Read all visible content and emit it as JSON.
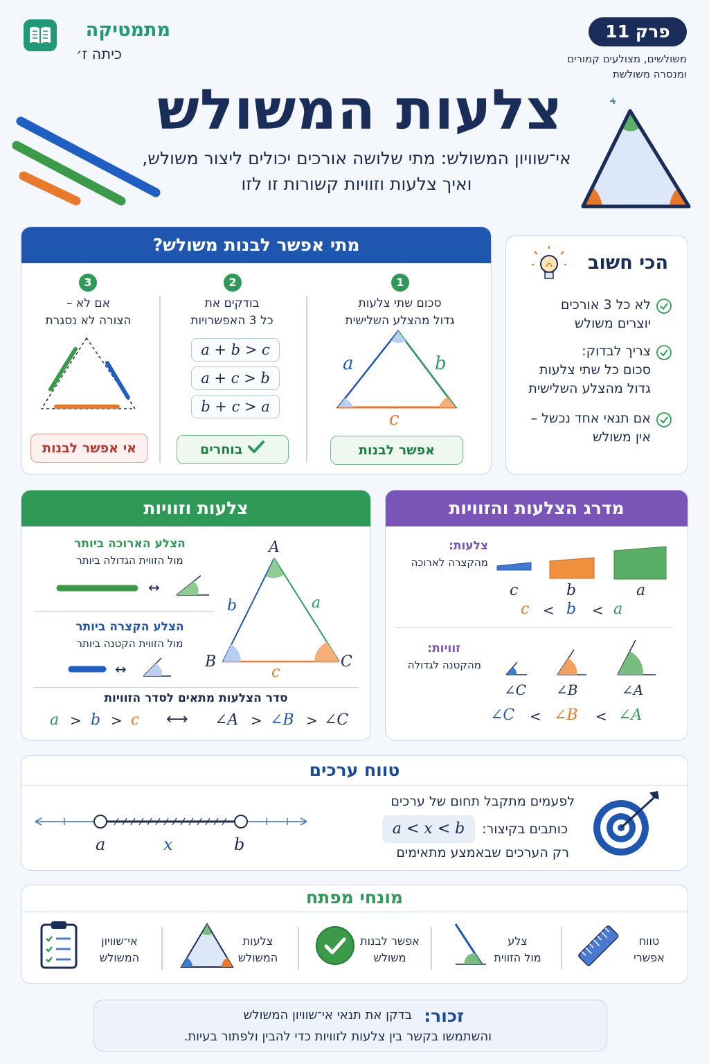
{
  "header": {
    "brand_title": "מתמטיקה",
    "brand_grade": "כיתה ז׳",
    "chapter_badge": "פרק 11",
    "chapter_topics_line1": "משולשים, מצולעים קמורים",
    "chapter_topics_line2": "ומנסרה משולשת",
    "main_title": "צלעות המשולש",
    "subtitle_line1": "אי־שוויון המשולש: מתי שלושה אורכים יכולים ליצור משולש,",
    "subtitle_line2": "ואיך צלעות וזוויות קשורות זו לזו"
  },
  "build_section": {
    "title": "מתי אפשר לבנות משולש?",
    "steps": [
      {
        "num": "1",
        "line1": "סכום שתי צלעות",
        "line2": "גדול מהצלע השלישית",
        "button": "אפשר לבנות"
      },
      {
        "num": "2",
        "line1": "בודקים את",
        "line2": "כל 3 האפשרויות",
        "button": "בוחרים"
      },
      {
        "num": "3",
        "line1": "אם לא –",
        "line2": "הצורה לא נסגרת",
        "button": "אי אפשר לבנות"
      }
    ],
    "inequalities": [
      "a + b > c",
      "a + c > b",
      "b + c > a"
    ],
    "side_labels": {
      "a": "a",
      "b": "b",
      "c": "c"
    }
  },
  "important": {
    "title": "הכי חשוב",
    "items": [
      {
        "line1": "לא כל 3 אורכים",
        "line2": "יוצרים משולש",
        "line3": ""
      },
      {
        "line1": "צריך לבדוק:",
        "line2": "סכום כל שתי צלעות",
        "line3": "גדול מהצלע השלישית"
      },
      {
        "line1": "אם תנאי אחד נכשל –",
        "line2": "אין משולש",
        "line3": ""
      }
    ]
  },
  "sides_angles": {
    "title": "צלעות וזוויות",
    "longest_title": "הצלע הארוכה ביותר",
    "longest_sub": "מול הזווית הגדולה ביותר",
    "shortest_title": "הצלע הקצרה ביותר",
    "shortest_sub": "מול הזווית הקטנה ביותר",
    "order_title": "סדר הצלעות מתאים לסדר הזוויות",
    "arrow": "↔",
    "vertices": {
      "A": "A",
      "B": "B",
      "C": "C"
    },
    "order_sides": [
      "a",
      ">",
      "b",
      ">",
      "c"
    ],
    "order_angles": [
      "∠A",
      ">",
      "∠B",
      ">",
      "∠C"
    ],
    "long_arrow": "⟷"
  },
  "ordering": {
    "title": "מדרג הצלעות והזוויות",
    "sides_label": "צלעות:",
    "sides_sub": "מהקצרה לארוכה",
    "side_letters": [
      "c",
      "b",
      "a"
    ],
    "sides_order": [
      "c",
      "<",
      "b",
      "<",
      "a"
    ],
    "angles_label": "זוויות:",
    "angles_sub": "מהקטנה לגדולה",
    "angle_letters": [
      "∠C",
      "∠B",
      "∠A"
    ],
    "angles_order": [
      "∠C",
      "<",
      "∠B",
      "<",
      "∠A"
    ]
  },
  "range": {
    "title": "טווח ערכים",
    "line1": "לפעמים מתקבל תחום של ערכים",
    "line2_prefix": "כותבים בקיצור:",
    "line2_formula": "a < x < b",
    "line3": "רק הערכים שבאמצע מתאימים",
    "axis_labels": [
      "a",
      "x",
      "b"
    ]
  },
  "key_terms": {
    "title": "מונחי מפתח",
    "items": [
      {
        "line1": "טווח",
        "line2": "אפשרי",
        "icon": "ruler-icon"
      },
      {
        "line1": "צלע",
        "line2": "מול הזווית",
        "icon": "side-angle-icon"
      },
      {
        "line1": "אפשר לבנות",
        "line2": "משולש",
        "icon": "check-circle-icon"
      },
      {
        "line1": "צלעות",
        "line2": "המשולש",
        "icon": "triangle-icon"
      },
      {
        "line1": "אי־שוויון",
        "line2": "המשולש",
        "icon": "clipboard-icon"
      }
    ]
  },
  "remember": {
    "label": "זכור:",
    "line1": "בדקן את תנאי אי־שוויון המשולש",
    "line2": "והשתמשו בקשר בין צלעות לזוויות כדי להבין ולפתור בעיות."
  },
  "colors": {
    "blue": "#1f56b0",
    "green": "#2f9a58",
    "purple": "#7a55b8",
    "orange": "#e8782a",
    "navy": "#1a2c58"
  }
}
